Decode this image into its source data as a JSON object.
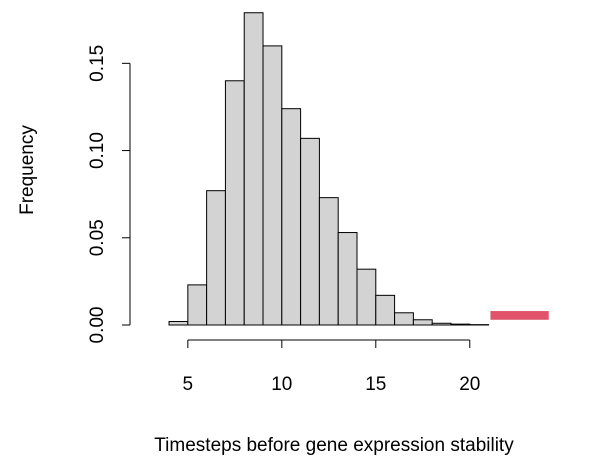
{
  "chart_data": {
    "type": "histogram",
    "x_label": "Timesteps before gene expression stability",
    "y_label": "Frequency",
    "bins": [
      4,
      5,
      6,
      7,
      8,
      9,
      10,
      11,
      12,
      13,
      14,
      15,
      16,
      17,
      18,
      19,
      20,
      21
    ],
    "values": [
      0.002,
      0.023,
      0.077,
      0.14,
      0.179,
      0.16,
      0.124,
      0.107,
      0.073,
      0.053,
      0.032,
      0.017,
      0.007,
      0.003,
      0.001,
      0.0005,
      0.0002
    ],
    "color": "#d3d3d3",
    "highlight": {
      "x": [
        21.1,
        24.2
      ],
      "y": [
        0.003,
        0.008
      ],
      "color": "#df536b"
    },
    "xlim": [
      3.2,
      24.8
    ],
    "ylim": [
      0,
      0.18
    ],
    "xticks": [
      5,
      10,
      15,
      20
    ],
    "yticks": [
      {
        "value": 0,
        "label": "0.00"
      },
      0.05,
      {
        "value": 0.1,
        "label": "0.10"
      },
      0.15
    ]
  }
}
